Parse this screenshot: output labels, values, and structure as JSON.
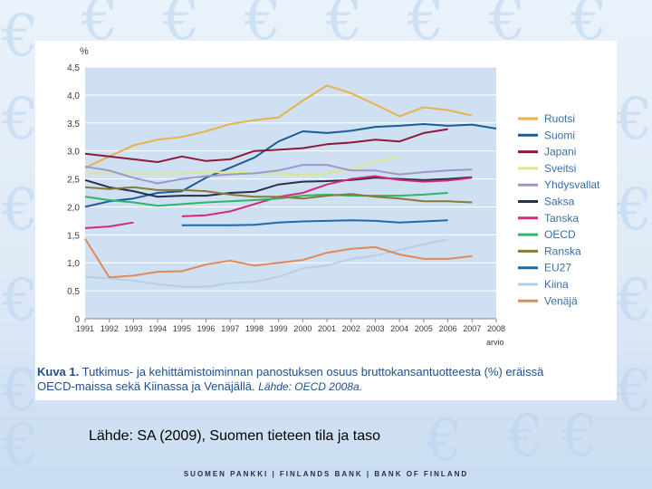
{
  "chart_data": {
    "type": "line",
    "ylabel": "%",
    "ylim": [
      0,
      4.5
    ],
    "yticks": [
      "0",
      "0,5",
      "1,0",
      "1,5",
      "2,0",
      "2,5",
      "3,0",
      "3,5",
      "4,0",
      "4,5"
    ],
    "xticks": [
      "1991",
      "1992",
      "1993",
      "1994",
      "1995",
      "1996",
      "1997",
      "1998",
      "1999",
      "2000",
      "2001",
      "2002",
      "2003",
      "2004",
      "2005",
      "2006",
      "2007",
      "2008"
    ],
    "x_note": "arvio",
    "x": [
      1991,
      1992,
      1993,
      1994,
      1995,
      1996,
      1997,
      1998,
      1999,
      2000,
      2001,
      2002,
      2003,
      2004,
      2005,
      2006,
      2007,
      2008
    ],
    "legend_position": "right",
    "series": [
      {
        "name": "Ruotsi",
        "color": "#e8b14a",
        "values": [
          2.7,
          2.9,
          3.1,
          3.2,
          3.25,
          3.35,
          3.48,
          3.55,
          3.6,
          3.9,
          4.17,
          4.03,
          3.83,
          3.62,
          3.78,
          3.73,
          3.63,
          null
        ]
      },
      {
        "name": "Suomi",
        "color": "#1a5b9a",
        "values": [
          2.0,
          2.1,
          2.15,
          2.25,
          2.28,
          2.52,
          2.7,
          2.88,
          3.17,
          3.35,
          3.32,
          3.36,
          3.43,
          3.45,
          3.48,
          3.45,
          3.47,
          3.4
        ]
      },
      {
        "name": "Japani",
        "color": "#8b1a3b",
        "values": [
          2.95,
          2.9,
          2.85,
          2.8,
          2.9,
          2.82,
          2.85,
          3.0,
          3.02,
          3.05,
          3.12,
          3.15,
          3.2,
          3.17,
          3.32,
          3.39,
          null,
          null
        ]
      },
      {
        "name": "Sveitsi",
        "color": "#d9e88c",
        "values": [
          2.6,
          2.6,
          2.6,
          2.6,
          2.6,
          2.62,
          2.62,
          2.6,
          2.6,
          2.57,
          2.6,
          2.68,
          2.8,
          2.9,
          null,
          null,
          null,
          null
        ]
      },
      {
        "name": "Yhdysvallat",
        "color": "#9c98c8",
        "values": [
          2.72,
          2.65,
          2.52,
          2.42,
          2.5,
          2.55,
          2.58,
          2.6,
          2.65,
          2.75,
          2.75,
          2.65,
          2.65,
          2.58,
          2.62,
          2.65,
          2.67,
          null
        ]
      },
      {
        "name": "Saksa",
        "color": "#27304a",
        "values": [
          2.48,
          2.35,
          2.28,
          2.18,
          2.2,
          2.2,
          2.25,
          2.27,
          2.4,
          2.45,
          2.46,
          2.48,
          2.52,
          2.5,
          2.48,
          2.5,
          2.53,
          null
        ]
      },
      {
        "name": "Tanska",
        "color": "#d6287a",
        "values": [
          1.62,
          1.65,
          1.72,
          null,
          1.83,
          1.85,
          1.92,
          2.05,
          2.18,
          2.25,
          2.4,
          2.5,
          2.55,
          2.48,
          2.45,
          2.47,
          2.52,
          null
        ]
      },
      {
        "name": "OECD",
        "color": "#2fb56a",
        "values": [
          2.18,
          2.12,
          2.08,
          2.02,
          2.05,
          2.08,
          2.1,
          2.12,
          2.15,
          2.2,
          2.22,
          2.2,
          2.2,
          2.2,
          2.22,
          2.25,
          null,
          null
        ]
      },
      {
        "name": "Ranska",
        "color": "#8a7a3a",
        "values": [
          2.35,
          2.32,
          2.35,
          2.3,
          2.3,
          2.28,
          2.22,
          2.18,
          2.18,
          2.15,
          2.2,
          2.23,
          2.18,
          2.15,
          2.1,
          2.1,
          2.08,
          null
        ]
      },
      {
        "name": "EU27",
        "color": "#1e6aa8",
        "values": [
          null,
          null,
          null,
          null,
          1.67,
          1.67,
          1.67,
          1.68,
          1.72,
          1.74,
          1.75,
          1.76,
          1.75,
          1.72,
          1.74,
          1.76,
          null,
          null
        ]
      },
      {
        "name": "Kiina",
        "color": "#b5cfe8",
        "values": [
          0.75,
          0.72,
          0.68,
          0.62,
          0.57,
          0.57,
          0.64,
          0.66,
          0.75,
          0.9,
          0.95,
          1.07,
          1.13,
          1.23,
          1.33,
          1.42,
          null,
          null
        ]
      },
      {
        "name": "Venäjä",
        "color": "#e08a5a",
        "values": [
          1.43,
          0.74,
          0.77,
          0.84,
          0.85,
          0.97,
          1.04,
          0.95,
          1.0,
          1.05,
          1.18,
          1.25,
          1.28,
          1.15,
          1.07,
          1.07,
          1.12,
          null
        ]
      }
    ]
  },
  "caption": {
    "label": "Kuva 1.",
    "text": "Tutkimus- ja kehittämistoiminnan panostuksen osuus bruttokansantuotteesta (%) eräissä OECD-maissa sekä Kiinassa ja Venäjällä.",
    "source": "Lähde: OECD 2008a."
  },
  "source_line": "Lähde: SA (2009), Suomen tieteen tila ja taso",
  "footer": "SUOMEN PANKKI | FINLANDS BANK | BANK OF FINLAND"
}
